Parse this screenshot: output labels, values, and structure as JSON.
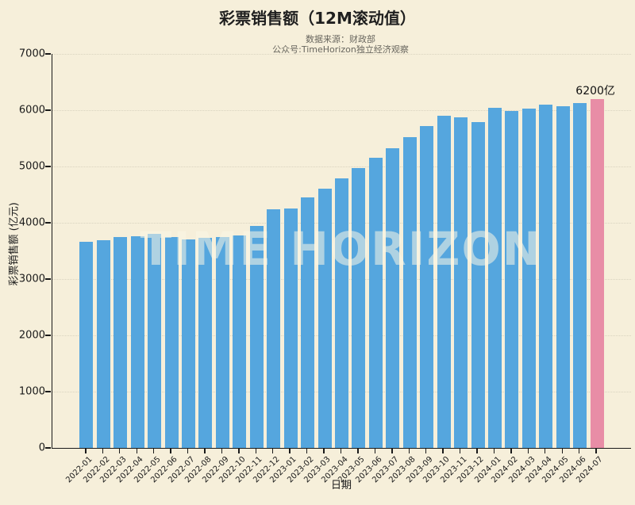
{
  "header": {
    "title": "彩票销售额（12M滚动值）",
    "subtitle_source": "数据来源：财政部",
    "subtitle_channel": "公众号:TimeHorizon独立经济观察"
  },
  "watermark": "TIME HORIZON",
  "chart_data": {
    "type": "bar",
    "title": "彩票销售额（12M滚动值）",
    "xlabel": "日期",
    "ylabel": "彩票销售额 (亿元)",
    "ylim": [
      0,
      7000
    ],
    "yticks": [
      0,
      1000,
      2000,
      3000,
      4000,
      5000,
      6000,
      7000
    ],
    "grid": "horizontal-dotted",
    "legend": "none",
    "categories": [
      "2022-01",
      "2022-02",
      "2022-03",
      "2022-04",
      "2022-05",
      "2022-06",
      "2022-07",
      "2022-08",
      "2022-09",
      "2022-10",
      "2022-11",
      "2022-12",
      "2023-01",
      "2023-02",
      "2023-03",
      "2023-04",
      "2023-05",
      "2023-06",
      "2023-07",
      "2023-08",
      "2023-09",
      "2023-10",
      "2023-11",
      "2023-12",
      "2024-01",
      "2024-02",
      "2024-03",
      "2024-04",
      "2024-05",
      "2024-06",
      "2024-07"
    ],
    "values": [
      3660,
      3690,
      3740,
      3760,
      3800,
      3745,
      3705,
      3735,
      3750,
      3775,
      3940,
      4235,
      4255,
      4455,
      4610,
      4790,
      4970,
      5150,
      5320,
      5515,
      5720,
      5895,
      5880,
      5795,
      6040,
      5985,
      6035,
      6095,
      6075,
      6130,
      6200
    ],
    "bar_color": "#55a6de",
    "highlight_color": "#e88da6",
    "highlight_index": 30,
    "annotation": {
      "text": "6200亿",
      "category": "2024-07",
      "value": 6200
    }
  },
  "colors": {
    "background": "#f6efda",
    "bar_blue": "#55a6de",
    "bar_pink": "#e88da6",
    "spine": "#1a1a1a",
    "grid": "#d9d3bf",
    "title_text": "#1f1f1f",
    "subtitle_text": "#68665e",
    "watermark_text": "rgba(250,245,229,0.55)"
  }
}
